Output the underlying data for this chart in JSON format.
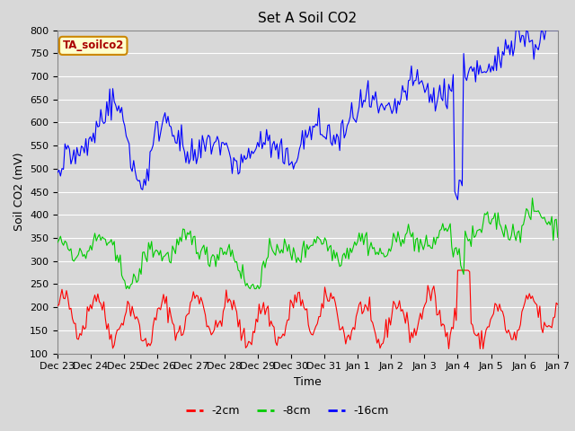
{
  "title": "Set A Soil CO2",
  "xlabel": "Time",
  "ylabel": "Soil CO2 (mV)",
  "ylim": [
    100,
    800
  ],
  "yticks": [
    100,
    150,
    200,
    250,
    300,
    350,
    400,
    450,
    500,
    550,
    600,
    650,
    700,
    750,
    800
  ],
  "legend_labels": [
    "-2cm",
    "-8cm",
    "-16cm"
  ],
  "legend_colors": [
    "#ff0000",
    "#00cc00",
    "#0000ff"
  ],
  "line_colors": [
    "#ff0000",
    "#00cc00",
    "#0000ff"
  ],
  "annotation_text": "TA_soilco2",
  "annotation_bg": "#ffffcc",
  "annotation_border": "#cc8800",
  "plot_bg_color": "#d8d8d8",
  "fig_bg_color": "#d8d8d8",
  "grid_color": "#ffffff",
  "n_points": 336,
  "title_fontsize": 11,
  "axis_label_fontsize": 9,
  "tick_label_fontsize": 8
}
